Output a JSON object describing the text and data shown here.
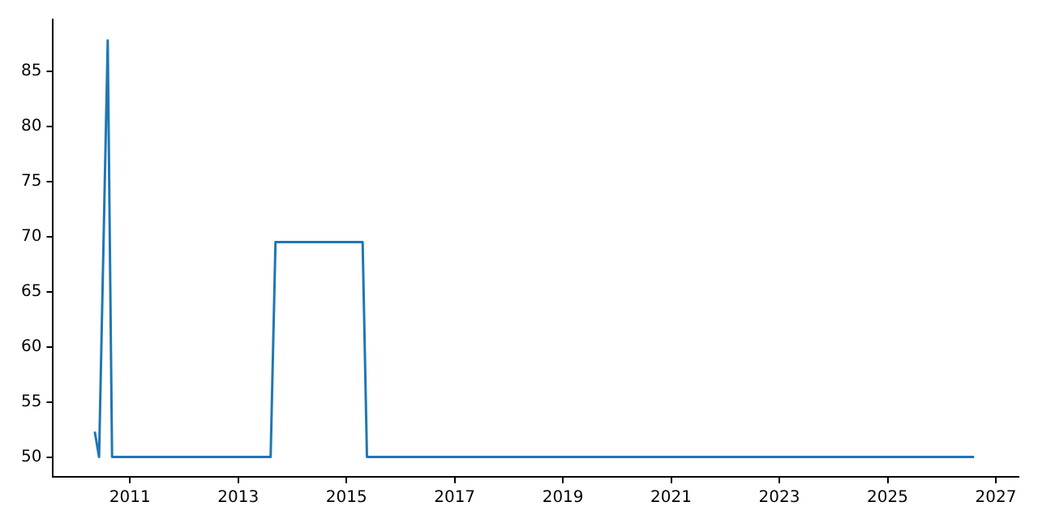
{
  "chart_data": {
    "type": "line",
    "x": [
      2010.35,
      2010.43,
      2010.59,
      2010.67,
      2013.6,
      2013.69,
      2015.3,
      2015.38,
      2026.6
    ],
    "series": [
      {
        "color": "#1f77b4",
        "values": [
          52.3,
          50,
          87.8,
          50,
          50,
          69.5,
          69.5,
          50,
          50
        ]
      }
    ],
    "xlim": [
      2009.58,
      2027.42
    ],
    "xticks": [
      2011,
      2013,
      2015,
      2017,
      2019,
      2021,
      2023,
      2025,
      2027
    ],
    "ylim": [
      48.2,
      89.7
    ],
    "yticks": [
      50,
      55,
      60,
      65,
      70,
      75,
      80,
      85
    ],
    "grid": false,
    "legend": false,
    "marker": "none",
    "line_style": "solid"
  }
}
